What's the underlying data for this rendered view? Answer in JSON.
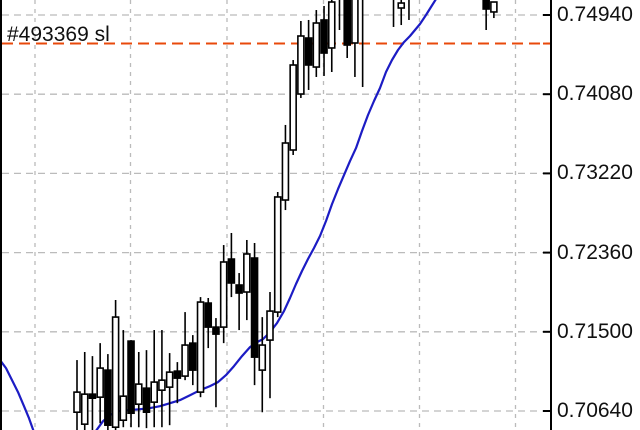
{
  "window": {
    "background": "#ffffff"
  },
  "order_line": {
    "label": "#493369 sl",
    "order_id": "493369",
    "kind": "stop-loss",
    "price": 0.7463,
    "color": "#e8490b"
  },
  "y_axis": {
    "side": "right",
    "labels": [
      "0.74940",
      "0.74080",
      "0.73220",
      "0.72360",
      "0.71500",
      "0.70640"
    ],
    "text_color": "#111111",
    "tick_color": "#000000"
  },
  "colors": {
    "background": "#ffffff",
    "border": "#000000",
    "grid": "#bbbbbb",
    "candle_outline": "#000000",
    "bull_fill": "#ffffff",
    "bear_fill": "#000000",
    "ma": "#1c1cc4",
    "sl": "#e8490b",
    "axis_text": "#111111"
  },
  "chart_data": {
    "type": "candlestick",
    "grid": "dashed",
    "legend_position": "none",
    "visible_price_range": [
      0.70432,
      0.75103
    ],
    "gridline_prices": [
      0.7494,
      0.7408,
      0.7322,
      0.7236,
      0.715,
      0.7064
    ],
    "gridline_step": 0.0086,
    "candles": [
      {
        "i": 0,
        "o": 0.70627,
        "h": 0.71193,
        "l": 0.70432,
        "c": 0.70845
      },
      {
        "i": 1,
        "o": 0.70497,
        "h": 0.7128,
        "l": 0.70432,
        "c": 0.70823
      },
      {
        "i": 2,
        "o": 0.70823,
        "h": 0.71236,
        "l": 0.70432,
        "c": 0.70779
      },
      {
        "i": 3,
        "o": 0.7079,
        "h": 0.71377,
        "l": 0.70507,
        "c": 0.71106
      },
      {
        "i": 4,
        "o": 0.71084,
        "h": 0.71258,
        "l": 0.70432,
        "c": 0.70486
      },
      {
        "i": 5,
        "o": 0.70464,
        "h": 0.71845,
        "l": 0.70432,
        "c": 0.7166
      },
      {
        "i": 6,
        "o": 0.7054,
        "h": 0.71519,
        "l": 0.70464,
        "c": 0.70801
      },
      {
        "i": 7,
        "o": 0.71399,
        "h": 0.7141,
        "l": 0.70464,
        "c": 0.70616
      },
      {
        "i": 8,
        "o": 0.70714,
        "h": 0.7128,
        "l": 0.70464,
        "c": 0.70932
      },
      {
        "i": 9,
        "o": 0.70888,
        "h": 0.71301,
        "l": 0.70454,
        "c": 0.70627
      },
      {
        "i": 10,
        "o": 0.70736,
        "h": 0.71519,
        "l": 0.70464,
        "c": 0.70954
      },
      {
        "i": 11,
        "o": 0.70866,
        "h": 0.71519,
        "l": 0.70464,
        "c": 0.70975
      },
      {
        "i": 12,
        "o": 0.70899,
        "h": 0.71269,
        "l": 0.70486,
        "c": 0.71062
      },
      {
        "i": 13,
        "o": 0.71073,
        "h": 0.71171,
        "l": 0.70725,
        "c": 0.70997
      },
      {
        "i": 14,
        "o": 0.71019,
        "h": 0.71714,
        "l": 0.70975,
        "c": 0.71356
      },
      {
        "i": 15,
        "o": 0.71377,
        "h": 0.71464,
        "l": 0.70921,
        "c": 0.71084
      },
      {
        "i": 16,
        "o": 0.70845,
        "h": 0.71877,
        "l": 0.7079,
        "c": 0.71823
      },
      {
        "i": 17,
        "o": 0.71812,
        "h": 0.71867,
        "l": 0.71323,
        "c": 0.71551
      },
      {
        "i": 18,
        "o": 0.71551,
        "h": 0.71649,
        "l": 0.70681,
        "c": 0.71475
      },
      {
        "i": 19,
        "o": 0.71551,
        "h": 0.72442,
        "l": 0.71377,
        "c": 0.72258
      },
      {
        "i": 20,
        "o": 0.7229,
        "h": 0.72573,
        "l": 0.71877,
        "c": 0.7203
      },
      {
        "i": 21,
        "o": 0.72008,
        "h": 0.72138,
        "l": 0.71519,
        "c": 0.71921
      },
      {
        "i": 22,
        "o": 0.71932,
        "h": 0.72497,
        "l": 0.71627,
        "c": 0.72345
      },
      {
        "i": 23,
        "o": 0.72301,
        "h": 0.72464,
        "l": 0.70921,
        "c": 0.71225
      },
      {
        "i": 24,
        "o": 0.71084,
        "h": 0.7166,
        "l": 0.70627,
        "c": 0.71356
      },
      {
        "i": 25,
        "o": 0.7141,
        "h": 0.71932,
        "l": 0.70779,
        "c": 0.71725
      },
      {
        "i": 26,
        "o": 0.71714,
        "h": 0.73018,
        "l": 0.7166,
        "c": 0.72964
      },
      {
        "i": 27,
        "o": 0.72931,
        "h": 0.73746,
        "l": 0.72822,
        "c": 0.7355
      },
      {
        "i": 28,
        "o": 0.73474,
        "h": 0.74451,
        "l": 0.7342,
        "c": 0.74397
      },
      {
        "i": 29,
        "o": 0.74082,
        "h": 0.74875,
        "l": 0.74039,
        "c": 0.74712
      },
      {
        "i": 30,
        "o": 0.7469,
        "h": 0.74886,
        "l": 0.74126,
        "c": 0.74397
      },
      {
        "i": 31,
        "o": 0.74375,
        "h": 0.74994,
        "l": 0.74267,
        "c": 0.74853
      },
      {
        "i": 32,
        "o": 0.74886,
        "h": 0.75038,
        "l": 0.74278,
        "c": 0.74527
      },
      {
        "i": 33,
        "o": 0.74582,
        "h": 0.75103,
        "l": 0.74321,
        "c": 0.75081
      },
      {
        "i": 34,
        "o": 0.75125,
        "h": 0.7519,
        "l": 0.74777,
        "c": 0.7519
      },
      {
        "i": 35,
        "o": 0.7519,
        "h": 0.7519,
        "l": 0.74473,
        "c": 0.74614
      },
      {
        "i": 36,
        "o": 0.74636,
        "h": 0.7519,
        "l": 0.74267,
        "c": 0.7519
      },
      {
        "i": 37,
        "o": 0.75125,
        "h": 0.7519,
        "l": 0.74158,
        "c": 0.7519
      },
      {
        "i": 41,
        "o": 0.75125,
        "h": 0.7519,
        "l": 0.7481,
        "c": 0.7519
      },
      {
        "i": 42,
        "o": 0.75016,
        "h": 0.75103,
        "l": 0.74831,
        "c": 0.7507
      },
      {
        "i": 43,
        "o": 0.75125,
        "h": 0.7519,
        "l": 0.74886,
        "c": 0.7519
      },
      {
        "i": 53,
        "o": 0.75146,
        "h": 0.75146,
        "l": 0.74777,
        "c": 0.75005
      },
      {
        "i": 54,
        "o": 0.74973,
        "h": 0.75081,
        "l": 0.74907,
        "c": 0.75081
      }
    ],
    "ma_line": {
      "name": "moving-average",
      "color": "#1c1cc4",
      "segments": [
        [
          [
            0,
            0.71193
          ],
          [
            6,
            0.71106
          ],
          [
            12,
            0.70975
          ],
          [
            18,
            0.70845
          ],
          [
            24,
            0.70692
          ],
          [
            29,
            0.70562
          ],
          [
            34,
            0.7041
          ]
        ],
        [
          [
            95,
            0.7041
          ],
          [
            103,
            0.70529
          ],
          [
            110,
            0.70594
          ],
          [
            118,
            0.70638
          ],
          [
            128,
            0.70649
          ],
          [
            140,
            0.7066
          ],
          [
            150,
            0.70671
          ],
          [
            160,
            0.70692
          ],
          [
            170,
            0.70725
          ],
          [
            180,
            0.70758
          ],
          [
            190,
            0.70812
          ],
          [
            200,
            0.70866
          ],
          [
            210,
            0.7091
          ],
          [
            218,
            0.70954
          ],
          [
            226,
            0.7103
          ],
          [
            234,
            0.71128
          ],
          [
            242,
            0.71236
          ],
          [
            250,
            0.71334
          ],
          [
            257,
            0.71388
          ],
          [
            263,
            0.71421
          ],
          [
            270,
            0.71497
          ],
          [
            277,
            0.71594
          ],
          [
            284,
            0.71725
          ],
          [
            290,
            0.71867
          ],
          [
            296,
            0.72019
          ],
          [
            302,
            0.7216
          ],
          [
            308,
            0.7229
          ],
          [
            314,
            0.7241
          ],
          [
            320,
            0.7254
          ],
          [
            326,
            0.72703
          ],
          [
            332,
            0.72887
          ],
          [
            338,
            0.7305
          ],
          [
            344,
            0.73202
          ],
          [
            350,
            0.73354
          ],
          [
            356,
            0.73495
          ],
          [
            362,
            0.7368
          ],
          [
            368,
            0.73854
          ],
          [
            374,
            0.74006
          ],
          [
            380,
            0.74147
          ],
          [
            386,
            0.74321
          ],
          [
            392,
            0.74451
          ],
          [
            398,
            0.7456
          ],
          [
            404,
            0.74646
          ],
          [
            410,
            0.74712
          ],
          [
            415,
            0.74777
          ],
          [
            420,
            0.74842
          ],
          [
            426,
            0.7494
          ],
          [
            431,
            0.75027
          ],
          [
            437,
            0.7513
          ]
        ]
      ]
    }
  }
}
